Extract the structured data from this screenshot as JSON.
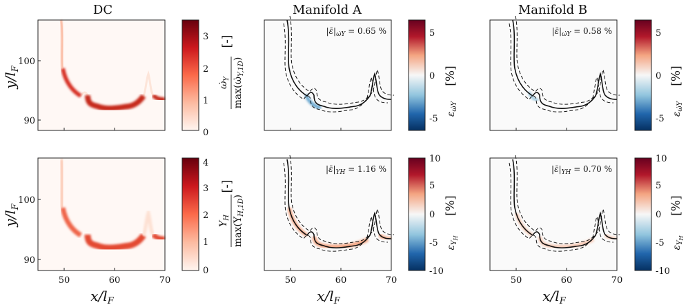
{
  "columns": [
    {
      "title": "DC"
    },
    {
      "title": "Manifold A"
    },
    {
      "title": "Manifold B"
    }
  ],
  "axes": {
    "xlabel": "x/l",
    "xlabel_sub": "F",
    "ylabel": "y/l",
    "ylabel_sub": "F",
    "xticks": [
      "50",
      "60",
      "70"
    ],
    "yticks": [
      "100",
      "90"
    ]
  },
  "colorbars": {
    "dc_top": {
      "ticks": [
        "3",
        "2",
        "1",
        "0"
      ],
      "unit": "[-]",
      "num": "ω̇",
      "num_sub": "Y",
      "den": "max(ω̇",
      "den_sub": "Y,1D",
      "den_close": ")"
    },
    "dc_bottom": {
      "ticks": [
        "4",
        "3",
        "2",
        "1",
        "0"
      ],
      "unit": "[-]",
      "num": "Y",
      "num_sub": "H",
      "den": "max(Y",
      "den_sub": "H,1D",
      "den_close": ")"
    },
    "err_top": {
      "ticks": [
        "5",
        "0",
        "-5"
      ],
      "unit": "[%]",
      "label": "ε",
      "label_sub": "ω̇Y"
    },
    "err_bottom": {
      "ticks": [
        "10",
        "5",
        "0",
        "-5",
        "-10"
      ],
      "unit": "[%]",
      "label": "ε",
      "label_sub": "Y",
      "label_subsub": "H"
    }
  },
  "annotations": {
    "a_top": {
      "lhs": "|ε̄|",
      "sub": "ω̇Y",
      "rhs": " = 0.65 %"
    },
    "b_top": {
      "lhs": "|ε̄|",
      "sub": "ω̇Y",
      "rhs": " = 0.58 %"
    },
    "a_bottom": {
      "lhs": "|ε̄|",
      "sub": "YH",
      "rhs": " = 1.16 %"
    },
    "b_bottom": {
      "lhs": "|ε̄|",
      "sub": "YH",
      "rhs": " = 0.70 %"
    }
  },
  "colors": {
    "seq_high": "#67000d",
    "seq_mid": "#ef6548",
    "seq_low": "#fff5f0",
    "div_high": "#67001f",
    "div_mid": "#f7f7f7",
    "div_low": "#053061",
    "flame": "#c62a1e"
  }
}
